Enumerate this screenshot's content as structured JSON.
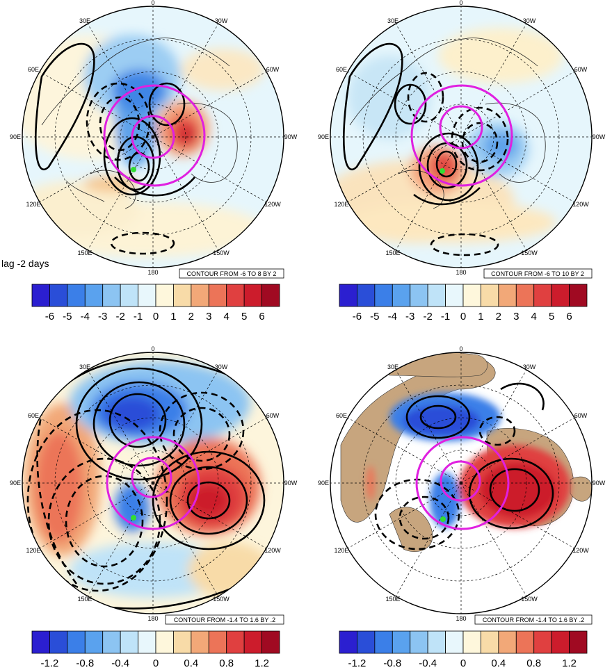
{
  "lag_label": "lag -2 days",
  "longitude_labels": {
    "top": "0",
    "bottom": "180",
    "left": "90E",
    "right": "90W",
    "upper_left": "30E",
    "upper_right": "30W",
    "mid_upper_left": "60E",
    "mid_upper_right": "60W",
    "mid_lower_left": "120E",
    "mid_lower_right": "120W",
    "lower_left": "150E",
    "lower_right": "150W"
  },
  "panels": [
    {
      "id": "top-left",
      "contour_info": "",
      "land_fill": false,
      "shading": "a"
    },
    {
      "id": "top-right",
      "contour_info": "CONTOUR FROM -6 TO 10 BY 2",
      "land_fill": false,
      "shading": "b"
    },
    {
      "id": "bottom-left",
      "contour_info": "",
      "land_fill": false,
      "shading": "c"
    },
    {
      "id": "bottom-right",
      "contour_info": "CONTOUR FROM -1.4 TO 1.6 BY .2",
      "land_fill": true,
      "shading": "d"
    }
  ],
  "top_left_contour_info": "CONTOUR FROM -6 TO 8 BY 2",
  "bottom_left_contour_info": "CONTOUR FROM -1.4 TO 1.6 BY .2",
  "colorbars": {
    "top": {
      "labels": [
        "-6",
        "-5",
        "-4",
        "-3",
        "-2",
        "-1",
        "0",
        "1",
        "2",
        "3",
        "4",
        "5",
        "6"
      ]
    },
    "bottom": {
      "labels": [
        "-1.2",
        "-0.8",
        "-0.4",
        "0",
        "0.4",
        "0.8",
        "1.2"
      ]
    },
    "colors": [
      "#2b1fd0",
      "#2a4ed8",
      "#3b7fe8",
      "#5aa2ee",
      "#8cc4f2",
      "#bfe3f8",
      "#e8f7fc",
      "#fef7dc",
      "#f8dba8",
      "#f2a878",
      "#ec7458",
      "#e04040",
      "#cc1c2c",
      "#a00a22"
    ]
  }
}
